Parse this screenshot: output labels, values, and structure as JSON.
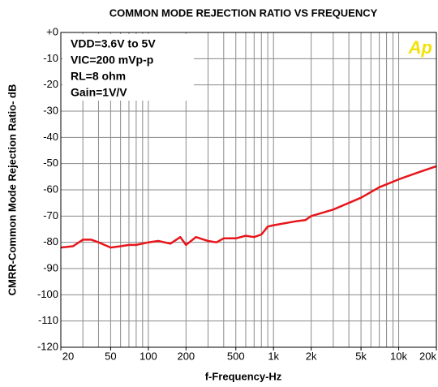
{
  "chart_data": {
    "type": "line",
    "title": "COMMON MODE REJECTION RATIO VS FREQUENCY",
    "x_label": "f-Frequency-Hz",
    "y_label": "CMRR-Common Mode Rejection Ratio- dB",
    "annotations": [
      "VDD=3.6V to 5V",
      "VIC=200 mVp-p",
      "RL=8 ohm",
      "Gain=1V/V"
    ],
    "logo": "Ap",
    "x_log": true,
    "grid": true,
    "xlim": [
      20,
      20000
    ],
    "ylim": [
      -120,
      0
    ],
    "xticks": [
      20,
      50,
      100,
      200,
      500,
      {
        "value": 1000,
        "label": "1k"
      },
      {
        "value": 2000,
        "label": "2k"
      },
      {
        "value": 5000,
        "label": "5k"
      },
      {
        "value": 10000,
        "label": "10k"
      },
      {
        "value": 20000,
        "label": "20k"
      }
    ],
    "xgrid": [
      20,
      30,
      40,
      50,
      60,
      70,
      80,
      90,
      100,
      200,
      300,
      400,
      500,
      600,
      700,
      800,
      900,
      1000,
      2000,
      3000,
      4000,
      5000,
      6000,
      7000,
      8000,
      9000,
      10000,
      20000
    ],
    "yticks": [
      {
        "value": 0,
        "label": "+0"
      },
      -10,
      -20,
      -30,
      -40,
      -50,
      -60,
      -70,
      -80,
      -90,
      -100,
      -110,
      -120
    ],
    "x": [
      20,
      25,
      30,
      35,
      40,
      50,
      60,
      70,
      80,
      100,
      120,
      150,
      180,
      200,
      240,
      300,
      350,
      400,
      500,
      600,
      700,
      800,
      900,
      1000,
      1500,
      1800,
      2000,
      3000,
      5000,
      7000,
      10000,
      15000,
      20000
    ],
    "series": [
      {
        "name": "CMRR",
        "color": "#e8151b",
        "values": [
          -82,
          -81.5,
          -79,
          -79,
          -80,
          -82,
          -81.5,
          -81,
          -81,
          -80,
          -79.5,
          -80.5,
          -78,
          -81,
          -78,
          -79.5,
          -80,
          -78.5,
          -78.5,
          -77.5,
          -78,
          -77,
          -74,
          -73.5,
          -72,
          -71.5,
          -70,
          -67.5,
          -63,
          -59,
          -56,
          -53,
          -51
        ]
      }
    ]
  }
}
